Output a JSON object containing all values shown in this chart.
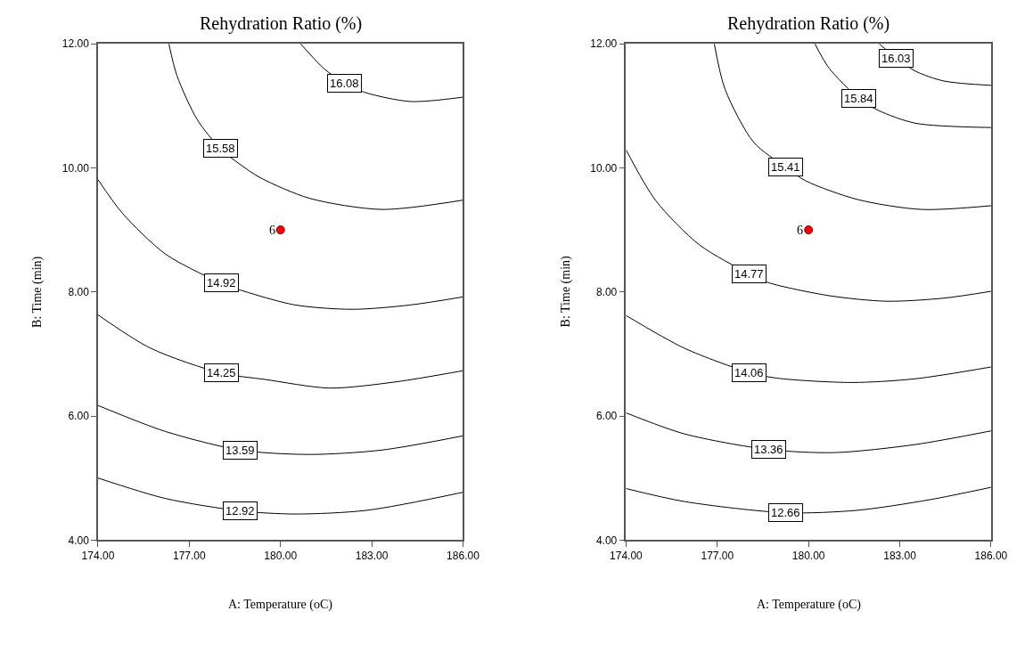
{
  "chart_data": [
    {
      "type": "line",
      "title": "Rehydration Ratio (%)",
      "xlabel": "A: Temperature (oC)",
      "ylabel": "B: Time (min)",
      "xlim": [
        174,
        186
      ],
      "ylim": [
        4,
        12
      ],
      "xticks": [
        {
          "value": 174,
          "label": "174.00"
        },
        {
          "value": 177,
          "label": "177.00"
        },
        {
          "value": 180,
          "label": "180.00"
        },
        {
          "value": 183,
          "label": "183.00"
        },
        {
          "value": 186,
          "label": "186.00"
        }
      ],
      "yticks": [
        {
          "value": 4,
          "label": "4.00"
        },
        {
          "value": 6,
          "label": "6.00"
        },
        {
          "value": 8,
          "label": "8.00"
        },
        {
          "value": 10,
          "label": "10.00"
        },
        {
          "value": 12,
          "label": "12.00"
        }
      ],
      "legend": false,
      "annotations": [
        {
          "text": "6",
          "x": 180,
          "y": 9
        }
      ],
      "series": [
        {
          "name": "16.08",
          "color": "#000000",
          "x": [
            180.66,
            181.43,
            182.09,
            182.75,
            184.27,
            186
          ],
          "values": [
            12,
            11.6,
            11.37,
            11.22,
            11.07,
            11.14
          ]
        },
        {
          "name": "15.58",
          "color": "#000000",
          "x": [
            176.33,
            176.6,
            177.26,
            178.02,
            178.66,
            179.34,
            180.95,
            183.32,
            186
          ],
          "values": [
            12,
            11.48,
            10.78,
            10.31,
            10.06,
            9.84,
            9.51,
            9.33,
            9.48
          ]
        },
        {
          "name": "14.92",
          "color": "#000000",
          "x": [
            174,
            174.8,
            176.22,
            178.06,
            178.68,
            180.48,
            182.37,
            184.27,
            186
          ],
          "values": [
            9.81,
            9.27,
            8.61,
            8.14,
            8.03,
            7.79,
            7.72,
            7.79,
            7.92
          ]
        },
        {
          "name": "14.25",
          "color": "#000000",
          "x": [
            174,
            175.74,
            178.06,
            179.48,
            181.61,
            183.79,
            186
          ],
          "values": [
            7.63,
            7.09,
            6.69,
            6.59,
            6.45,
            6.55,
            6.73
          ]
        },
        {
          "name": "13.59",
          "color": "#000000",
          "x": [
            174,
            176.22,
            178.68,
            180.95,
            183.32,
            186
          ],
          "values": [
            6.17,
            5.75,
            5.45,
            5.38,
            5.45,
            5.68
          ]
        },
        {
          "name": "12.92",
          "color": "#000000",
          "x": [
            174,
            176.22,
            178.68,
            180.48,
            182.85,
            186
          ],
          "values": [
            5.0,
            4.67,
            4.47,
            4.42,
            4.48,
            4.77
          ]
        },
        {
          "type": "scatter",
          "color": "#ff0000",
          "marker": "circle",
          "x": [
            180
          ],
          "values": [
            9
          ]
        }
      ]
    },
    {
      "type": "line",
      "title": "Rehydration Ratio (%)",
      "xlabel": "A: Temperature (oC)",
      "ylabel": "B: Time (min)",
      "xlim": [
        174,
        186
      ],
      "ylim": [
        4,
        12
      ],
      "xticks": [
        {
          "value": 174,
          "label": "174.00"
        },
        {
          "value": 177,
          "label": "177.00"
        },
        {
          "value": 180,
          "label": "180.00"
        },
        {
          "value": 183,
          "label": "183.00"
        },
        {
          "value": 186,
          "label": "186.00"
        }
      ],
      "yticks": [
        {
          "value": 4,
          "label": "4.00"
        },
        {
          "value": 6,
          "label": "6.00"
        },
        {
          "value": 8,
          "label": "8.00"
        },
        {
          "value": 10,
          "label": "10.00"
        },
        {
          "value": 12,
          "label": "12.00"
        }
      ],
      "legend": false,
      "annotations": [
        {
          "text": "6",
          "x": 180,
          "y": 9
        }
      ],
      "series": [
        {
          "name": "16.03",
          "color": "#000000",
          "x": [
            182.32,
            182.89,
            183.51,
            184.45,
            186
          ],
          "values": [
            12,
            11.77,
            11.56,
            11.4,
            11.33
          ]
        },
        {
          "name": "15.84",
          "color": "#000000",
          "x": [
            180.21,
            180.67,
            181.66,
            182.28,
            183.51,
            186
          ],
          "values": [
            12,
            11.61,
            11.12,
            10.93,
            10.72,
            10.65
          ]
        },
        {
          "name": "15.41",
          "color": "#000000",
          "x": [
            176.9,
            177.26,
            178.2,
            179.25,
            179.91,
            181.61,
            183.7,
            186
          ],
          "values": [
            12,
            11.26,
            10.41,
            10.01,
            9.79,
            9.49,
            9.33,
            9.39
          ]
        },
        {
          "name": "14.77",
          "color": "#000000",
          "x": [
            174,
            174.98,
            176.41,
            178.06,
            178.68,
            180.67,
            182.56,
            184.45,
            186
          ],
          "values": [
            10.29,
            9.47,
            8.76,
            8.29,
            8.15,
            7.94,
            7.85,
            7.9,
            8.01
          ]
        },
        {
          "name": "14.06",
          "color": "#000000",
          "x": [
            174,
            175.93,
            178.06,
            178.96,
            181.42,
            183.51,
            186
          ],
          "values": [
            7.62,
            7.09,
            6.7,
            6.61,
            6.54,
            6.6,
            6.79
          ]
        },
        {
          "name": "13.36",
          "color": "#000000",
          "x": [
            174,
            175.93,
            178.68,
            180.86,
            183.51,
            186
          ],
          "values": [
            6.05,
            5.71,
            5.46,
            5.41,
            5.54,
            5.76
          ]
        },
        {
          "name": "12.66",
          "color": "#000000",
          "x": [
            174,
            175.93,
            179.25,
            181.61,
            183.98,
            186
          ],
          "values": [
            4.83,
            4.62,
            4.44,
            4.48,
            4.65,
            4.85
          ]
        },
        {
          "type": "scatter",
          "color": "#ff0000",
          "marker": "circle",
          "x": [
            180
          ],
          "values": [
            9
          ]
        }
      ]
    }
  ]
}
